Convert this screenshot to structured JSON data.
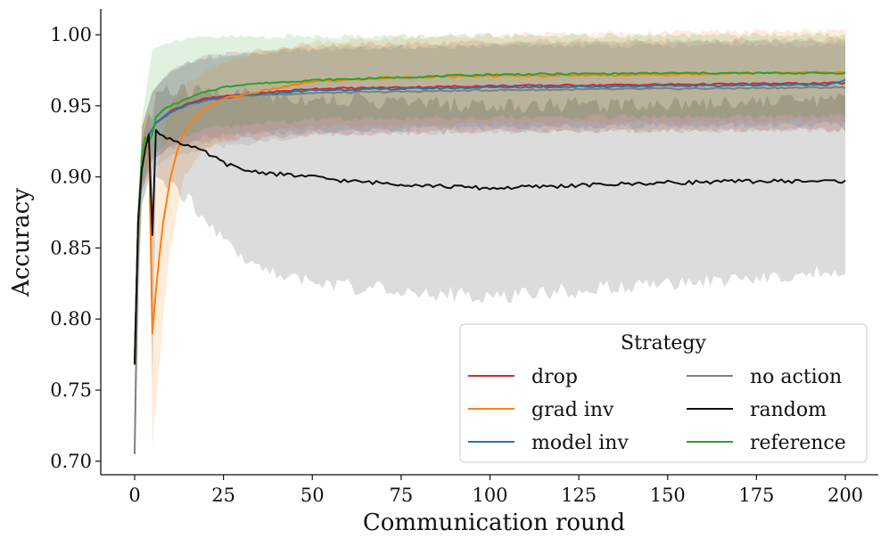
{
  "chart_data": {
    "type": "line",
    "title": "",
    "xlabel": "Communication round",
    "ylabel": "Accuracy",
    "xlim": [
      -10,
      205
    ],
    "ylim": [
      0.693,
      1.018
    ],
    "xticks": [
      0,
      25,
      50,
      75,
      100,
      125,
      150,
      175,
      200
    ],
    "xtick_labels": [
      "0",
      "25",
      "50",
      "75",
      "100",
      "125",
      "150",
      "175",
      "200"
    ],
    "yticks": [
      0.7,
      0.75,
      0.8,
      0.85,
      0.9,
      0.95,
      1.0
    ],
    "ytick_labels": [
      "0.70",
      "0.75",
      "0.80",
      "0.85",
      "0.90",
      "0.95",
      "1.00"
    ],
    "legend": {
      "title": "Strategy",
      "position": "lower-right",
      "columns": 2
    },
    "series": [
      {
        "name": "no action",
        "color": "#7f7f7f",
        "mean_knots": [
          [
            0,
            0.705
          ],
          [
            1,
            0.86
          ],
          [
            2,
            0.91
          ],
          [
            3,
            0.925
          ],
          [
            6,
            0.938
          ],
          [
            10,
            0.945
          ],
          [
            15,
            0.951
          ],
          [
            20,
            0.954
          ],
          [
            30,
            0.957
          ],
          [
            50,
            0.959
          ],
          [
            100,
            0.961
          ],
          [
            150,
            0.962
          ],
          [
            200,
            0.963
          ]
        ],
        "band_lower": [
          [
            0,
            0.705
          ],
          [
            2,
            0.88
          ],
          [
            5,
            0.905
          ],
          [
            10,
            0.915
          ],
          [
            20,
            0.92
          ],
          [
            50,
            0.93
          ],
          [
            100,
            0.932
          ],
          [
            200,
            0.933
          ]
        ],
        "band_upper": [
          [
            0,
            0.75
          ],
          [
            2,
            0.935
          ],
          [
            5,
            0.96
          ],
          [
            10,
            0.975
          ],
          [
            20,
            0.984
          ],
          [
            50,
            0.99
          ],
          [
            100,
            0.992
          ],
          [
            200,
            0.993
          ]
        ]
      },
      {
        "name": "drop",
        "color": "#d62728",
        "mean_knots": [
          [
            0,
            0.768
          ],
          [
            1,
            0.87
          ],
          [
            2,
            0.91
          ],
          [
            3,
            0.925
          ],
          [
            6,
            0.938
          ],
          [
            10,
            0.946
          ],
          [
            15,
            0.952
          ],
          [
            20,
            0.955
          ],
          [
            30,
            0.958
          ],
          [
            50,
            0.962
          ],
          [
            100,
            0.964
          ],
          [
            150,
            0.965
          ],
          [
            200,
            0.966
          ]
        ],
        "band_lower": [
          [
            0,
            0.768
          ],
          [
            2,
            0.89
          ],
          [
            5,
            0.912
          ],
          [
            10,
            0.92
          ],
          [
            20,
            0.925
          ],
          [
            50,
            0.93
          ],
          [
            100,
            0.932
          ],
          [
            200,
            0.933
          ]
        ],
        "band_upper": [
          [
            0,
            0.78
          ],
          [
            2,
            0.935
          ],
          [
            5,
            0.96
          ],
          [
            10,
            0.975
          ],
          [
            20,
            0.985
          ],
          [
            50,
            0.992
          ],
          [
            100,
            0.995
          ],
          [
            200,
            0.997
          ]
        ]
      },
      {
        "name": "model inv",
        "color": "#1f77b4",
        "mean_knots": [
          [
            0,
            0.768
          ],
          [
            1,
            0.87
          ],
          [
            2,
            0.91
          ],
          [
            3,
            0.925
          ],
          [
            6,
            0.938
          ],
          [
            10,
            0.945
          ],
          [
            15,
            0.951
          ],
          [
            20,
            0.954
          ],
          [
            30,
            0.957
          ],
          [
            50,
            0.961
          ],
          [
            100,
            0.963
          ],
          [
            150,
            0.964
          ],
          [
            195,
            0.965
          ],
          [
            200,
            0.968
          ]
        ],
        "band_lower": [
          [
            0,
            0.768
          ],
          [
            2,
            0.89
          ],
          [
            5,
            0.912
          ],
          [
            10,
            0.92
          ],
          [
            20,
            0.928
          ],
          [
            50,
            0.932
          ],
          [
            100,
            0.935
          ],
          [
            200,
            0.937
          ]
        ],
        "band_upper": [
          [
            0,
            0.78
          ],
          [
            2,
            0.935
          ],
          [
            5,
            0.96
          ],
          [
            10,
            0.975
          ],
          [
            20,
            0.985
          ],
          [
            50,
            0.99
          ],
          [
            100,
            0.993
          ],
          [
            200,
            0.996
          ]
        ]
      },
      {
        "name": "grad inv",
        "color": "#ff7f0e",
        "mean_knots": [
          [
            0,
            0.768
          ],
          [
            1,
            0.87
          ],
          [
            2,
            0.91
          ],
          [
            3,
            0.925
          ],
          [
            4,
            0.93
          ],
          [
            5,
            0.79
          ],
          [
            6,
            0.82
          ],
          [
            7,
            0.845
          ],
          [
            8,
            0.868
          ],
          [
            10,
            0.898
          ],
          [
            12,
            0.918
          ],
          [
            14,
            0.932
          ],
          [
            17,
            0.941
          ],
          [
            20,
            0.948
          ],
          [
            25,
            0.955
          ],
          [
            35,
            0.96
          ],
          [
            50,
            0.967
          ],
          [
            75,
            0.97
          ],
          [
            100,
            0.971
          ],
          [
            150,
            0.972
          ],
          [
            200,
            0.974
          ]
        ],
        "band_lower": [
          [
            0,
            0.768
          ],
          [
            2,
            0.89
          ],
          [
            4,
            0.91
          ],
          [
            5,
            0.71
          ],
          [
            6,
            0.74
          ],
          [
            8,
            0.8
          ],
          [
            10,
            0.85
          ],
          [
            14,
            0.9
          ],
          [
            20,
            0.92
          ],
          [
            30,
            0.93
          ],
          [
            50,
            0.935
          ],
          [
            100,
            0.937
          ],
          [
            200,
            0.94
          ]
        ],
        "band_upper": [
          [
            0,
            0.78
          ],
          [
            2,
            0.935
          ],
          [
            4,
            0.95
          ],
          [
            5,
            0.87
          ],
          [
            6,
            0.9
          ],
          [
            8,
            0.93
          ],
          [
            10,
            0.95
          ],
          [
            14,
            0.965
          ],
          [
            20,
            0.975
          ],
          [
            30,
            0.985
          ],
          [
            50,
            0.995
          ],
          [
            100,
            1.0
          ],
          [
            200,
            1.003
          ]
        ]
      },
      {
        "name": "reference",
        "color": "#2ca02c",
        "mean_knots": [
          [
            0,
            0.768
          ],
          [
            1,
            0.87
          ],
          [
            2,
            0.915
          ],
          [
            3,
            0.928
          ],
          [
            4,
            0.925
          ],
          [
            5,
            0.93
          ],
          [
            6,
            0.942
          ],
          [
            8,
            0.947
          ],
          [
            10,
            0.95
          ],
          [
            15,
            0.955
          ],
          [
            20,
            0.96
          ],
          [
            25,
            0.963
          ],
          [
            30,
            0.965
          ],
          [
            50,
            0.968
          ],
          [
            75,
            0.97
          ],
          [
            100,
            0.972
          ],
          [
            150,
            0.973
          ],
          [
            200,
            0.973
          ]
        ],
        "band_lower": [
          [
            0,
            0.768
          ],
          [
            2,
            0.895
          ],
          [
            5,
            0.915
          ],
          [
            10,
            0.925
          ],
          [
            20,
            0.935
          ],
          [
            50,
            0.94
          ],
          [
            100,
            0.942
          ],
          [
            200,
            0.943
          ]
        ],
        "band_upper": [
          [
            0,
            0.78
          ],
          [
            2,
            0.94
          ],
          [
            5,
            0.99
          ],
          [
            10,
            0.995
          ],
          [
            20,
            0.998
          ],
          [
            50,
            0.999
          ],
          [
            100,
            0.999
          ],
          [
            200,
            1.0
          ]
        ]
      },
      {
        "name": "random",
        "color": "#111111",
        "mean_knots": [
          [
            0,
            0.768
          ],
          [
            1,
            0.87
          ],
          [
            2,
            0.905
          ],
          [
            3,
            0.92
          ],
          [
            4,
            0.93
          ],
          [
            5,
            0.859
          ],
          [
            6,
            0.933
          ],
          [
            7,
            0.93
          ],
          [
            10,
            0.927
          ],
          [
            15,
            0.922
          ],
          [
            20,
            0.917
          ],
          [
            25,
            0.91
          ],
          [
            30,
            0.905
          ],
          [
            40,
            0.902
          ],
          [
            50,
            0.9
          ],
          [
            60,
            0.897
          ],
          [
            75,
            0.895
          ],
          [
            90,
            0.893
          ],
          [
            100,
            0.892
          ],
          [
            125,
            0.894
          ],
          [
            150,
            0.896
          ],
          [
            175,
            0.897
          ],
          [
            200,
            0.897
          ]
        ],
        "band_lower": [
          [
            0,
            0.768
          ],
          [
            2,
            0.88
          ],
          [
            4,
            0.9
          ],
          [
            5,
            0.755
          ],
          [
            6,
            0.9
          ],
          [
            10,
            0.895
          ],
          [
            15,
            0.885
          ],
          [
            20,
            0.87
          ],
          [
            25,
            0.855
          ],
          [
            30,
            0.845
          ],
          [
            40,
            0.83
          ],
          [
            50,
            0.825
          ],
          [
            75,
            0.82
          ],
          [
            100,
            0.815
          ],
          [
            125,
            0.82
          ],
          [
            150,
            0.824
          ],
          [
            175,
            0.828
          ],
          [
            200,
            0.834
          ]
        ],
        "band_upper": [
          [
            0,
            0.78
          ],
          [
            2,
            0.925
          ],
          [
            4,
            0.945
          ],
          [
            5,
            0.94
          ],
          [
            6,
            0.96
          ],
          [
            10,
            0.96
          ],
          [
            20,
            0.96
          ],
          [
            50,
            0.955
          ],
          [
            100,
            0.95
          ],
          [
            150,
            0.952
          ],
          [
            200,
            0.955
          ]
        ]
      }
    ]
  }
}
